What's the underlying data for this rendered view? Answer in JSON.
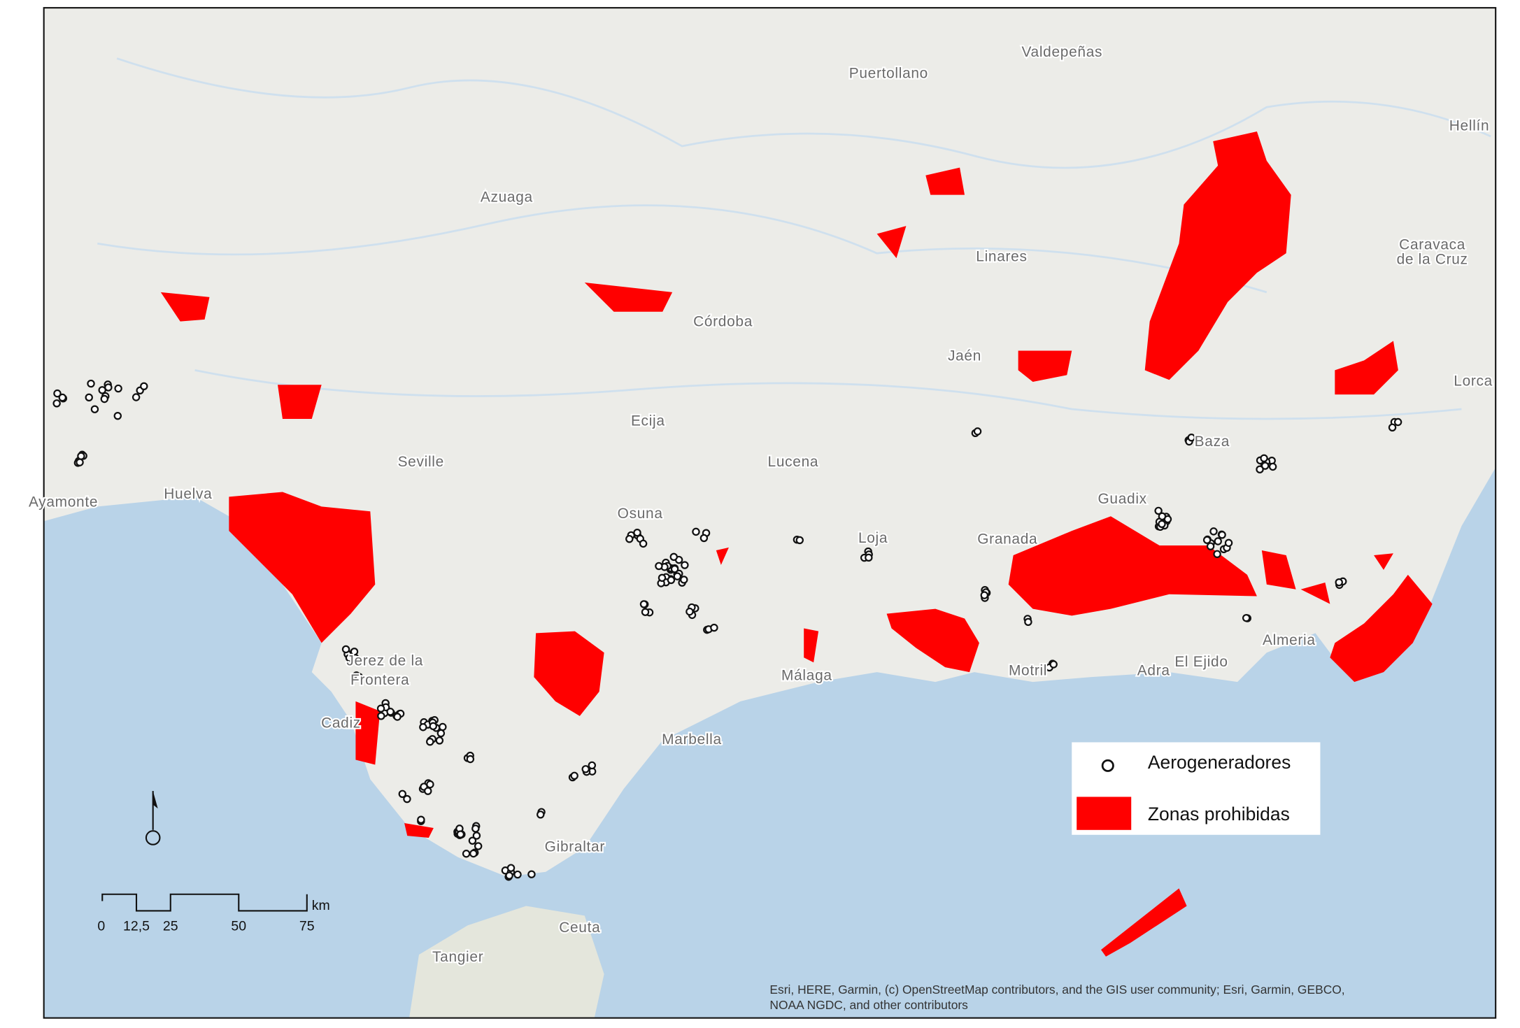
{
  "map": {
    "places": [
      {
        "label": "Valdepeñas"
      },
      {
        "label": "Puertollano"
      },
      {
        "label": "Hellín"
      },
      {
        "label": "Azuaga"
      },
      {
        "label": "Linares"
      },
      {
        "label": "Caravaca"
      },
      {
        "label": "de la Cruz"
      },
      {
        "label": "Córdoba"
      },
      {
        "label": "Jaén"
      },
      {
        "label": "Lorca"
      },
      {
        "label": "Ecija"
      },
      {
        "label": "Baza"
      },
      {
        "label": "Seville"
      },
      {
        "label": "Lucena"
      },
      {
        "label": "Huelva"
      },
      {
        "label": "Ayamonte"
      },
      {
        "label": "Guadix"
      },
      {
        "label": "Osuna"
      },
      {
        "label": "Loja"
      },
      {
        "label": "Granada"
      },
      {
        "label": "Jerez de la"
      },
      {
        "label": "Frontera"
      },
      {
        "label": "Cadiz"
      },
      {
        "label": "Málaga"
      },
      {
        "label": "Motril"
      },
      {
        "label": "Adra"
      },
      {
        "label": "El Ejido"
      },
      {
        "label": "Almeria"
      },
      {
        "label": "Marbella"
      },
      {
        "label": "Gibraltar"
      },
      {
        "label": "Ceuta"
      },
      {
        "label": "Tangier"
      }
    ],
    "legend": {
      "items": [
        {
          "label": "Aerogeneradores"
        },
        {
          "label": "Zonas prohibidas"
        }
      ]
    },
    "scale_bar": {
      "labels": [
        "0",
        "12,5",
        "25",
        "50",
        "75"
      ],
      "unit": "km"
    },
    "attribution": [
      "Esri, HERE, Garmin, (c) OpenStreetMap contributors, and the GIS user community; Esri, Garmin, GEBCO,",
      "NOAA NGDC, and other contributors"
    ]
  }
}
